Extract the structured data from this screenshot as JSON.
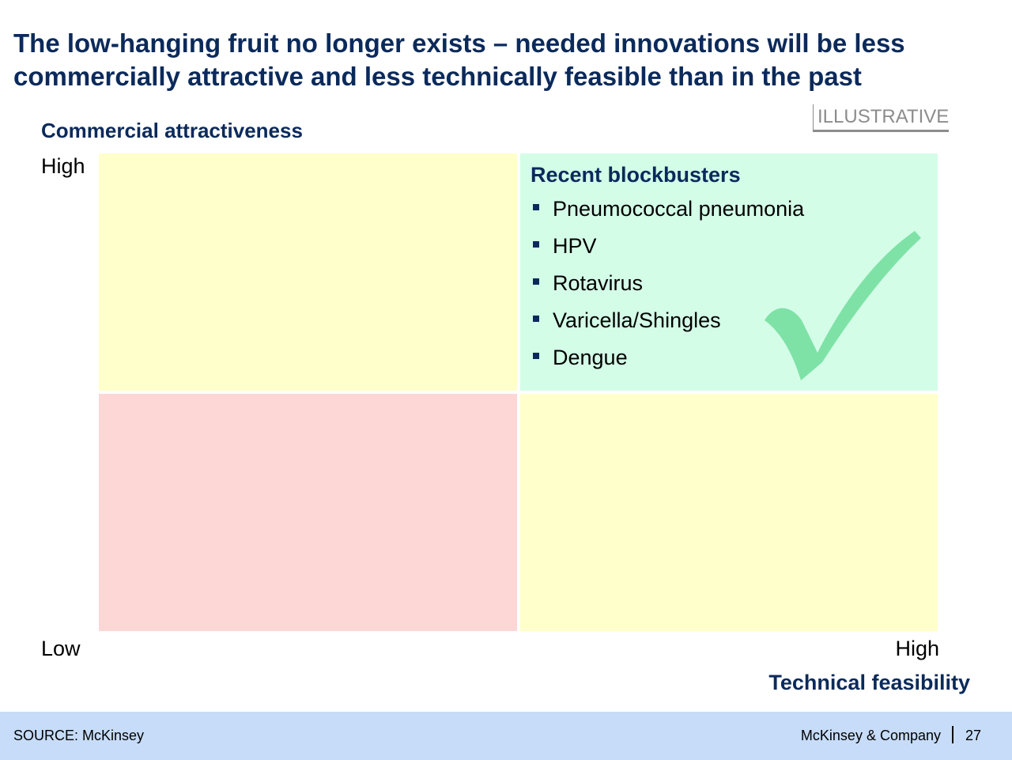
{
  "slide": {
    "title_lines": [
      "The low-hanging fruit no longer exists – needed innovations will be less",
      "commercially attractive and less technically feasible than in the past"
    ],
    "stamp": "ILLUSTRATIVE"
  },
  "matrix": {
    "y_axis": {
      "title": "Commercial attractiveness",
      "high": "High",
      "low": "Low"
    },
    "x_axis": {
      "title": "Technical feasibility",
      "high": "High"
    },
    "quadrants": {
      "top_left": {
        "color": "#ffffcc"
      },
      "top_right": {
        "color": "#d4fde8",
        "heading": "Recent blockbusters",
        "items": [
          "Pneumococcal pneumonia",
          "HPV",
          "Rotavirus",
          "Varicella/Shingles",
          "Dengue"
        ],
        "icon": "checkmark-icon",
        "icon_color": "#7ee2a6"
      },
      "bottom_left": {
        "color": "#fdd6d6"
      },
      "bottom_right": {
        "color": "#ffffcc"
      }
    }
  },
  "footer": {
    "source": "SOURCE: McKinsey",
    "company": "McKinsey & Company",
    "page": "27"
  },
  "colors": {
    "title": "#0b2a5b",
    "bullet": "#0b2a5b",
    "footer_bg": "#c6dcf8",
    "stamp": "#8c8c8c"
  }
}
